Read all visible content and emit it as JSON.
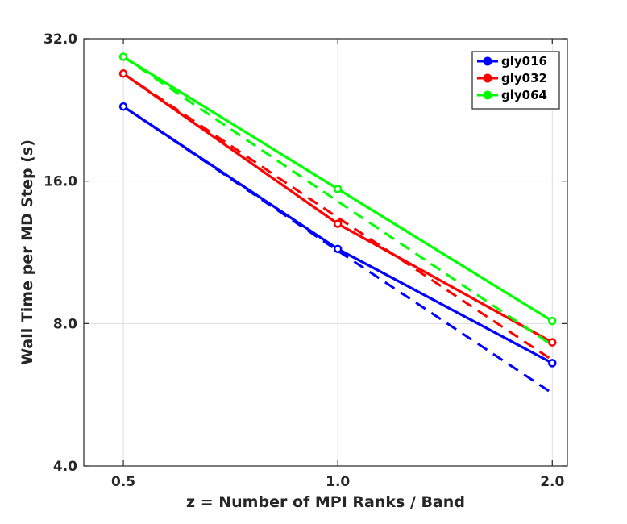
{
  "chart_data": {
    "type": "line",
    "title": "",
    "xlabel": "z = Number of MPI Ranks / Band",
    "ylabel": "Wall Time per MD Step (s)",
    "x_scale": "log2",
    "y_scale": "log2",
    "xlim": [
      0.44,
      2.1
    ],
    "ylim": [
      4.0,
      32.0
    ],
    "x_ticks": [
      0.5,
      1.0,
      2.0
    ],
    "x_tick_labels": [
      "0.5",
      "1.0",
      "2.0"
    ],
    "y_ticks": [
      4.0,
      8.0,
      16.0,
      32.0
    ],
    "y_tick_labels": [
      "4.0",
      "8.0",
      "16.0",
      "32.0"
    ],
    "grid": true,
    "legend_position": "top-right",
    "x": [
      0.5,
      1.0,
      2.0
    ],
    "series": [
      {
        "name": "gly016",
        "color": "#0000ff",
        "values": [
          23.0,
          11.5,
          6.6
        ],
        "ideal": [
          23.0,
          11.4,
          5.7
        ]
      },
      {
        "name": "gly032",
        "color": "#ff0000",
        "values": [
          27.0,
          13.0,
          7.3
        ],
        "ideal": [
          27.0,
          13.4,
          6.7
        ]
      },
      {
        "name": "gly064",
        "color": "#00ff00",
        "values": [
          29.3,
          15.4,
          8.1
        ],
        "ideal": [
          29.3,
          14.5,
          7.2
        ]
      }
    ]
  }
}
